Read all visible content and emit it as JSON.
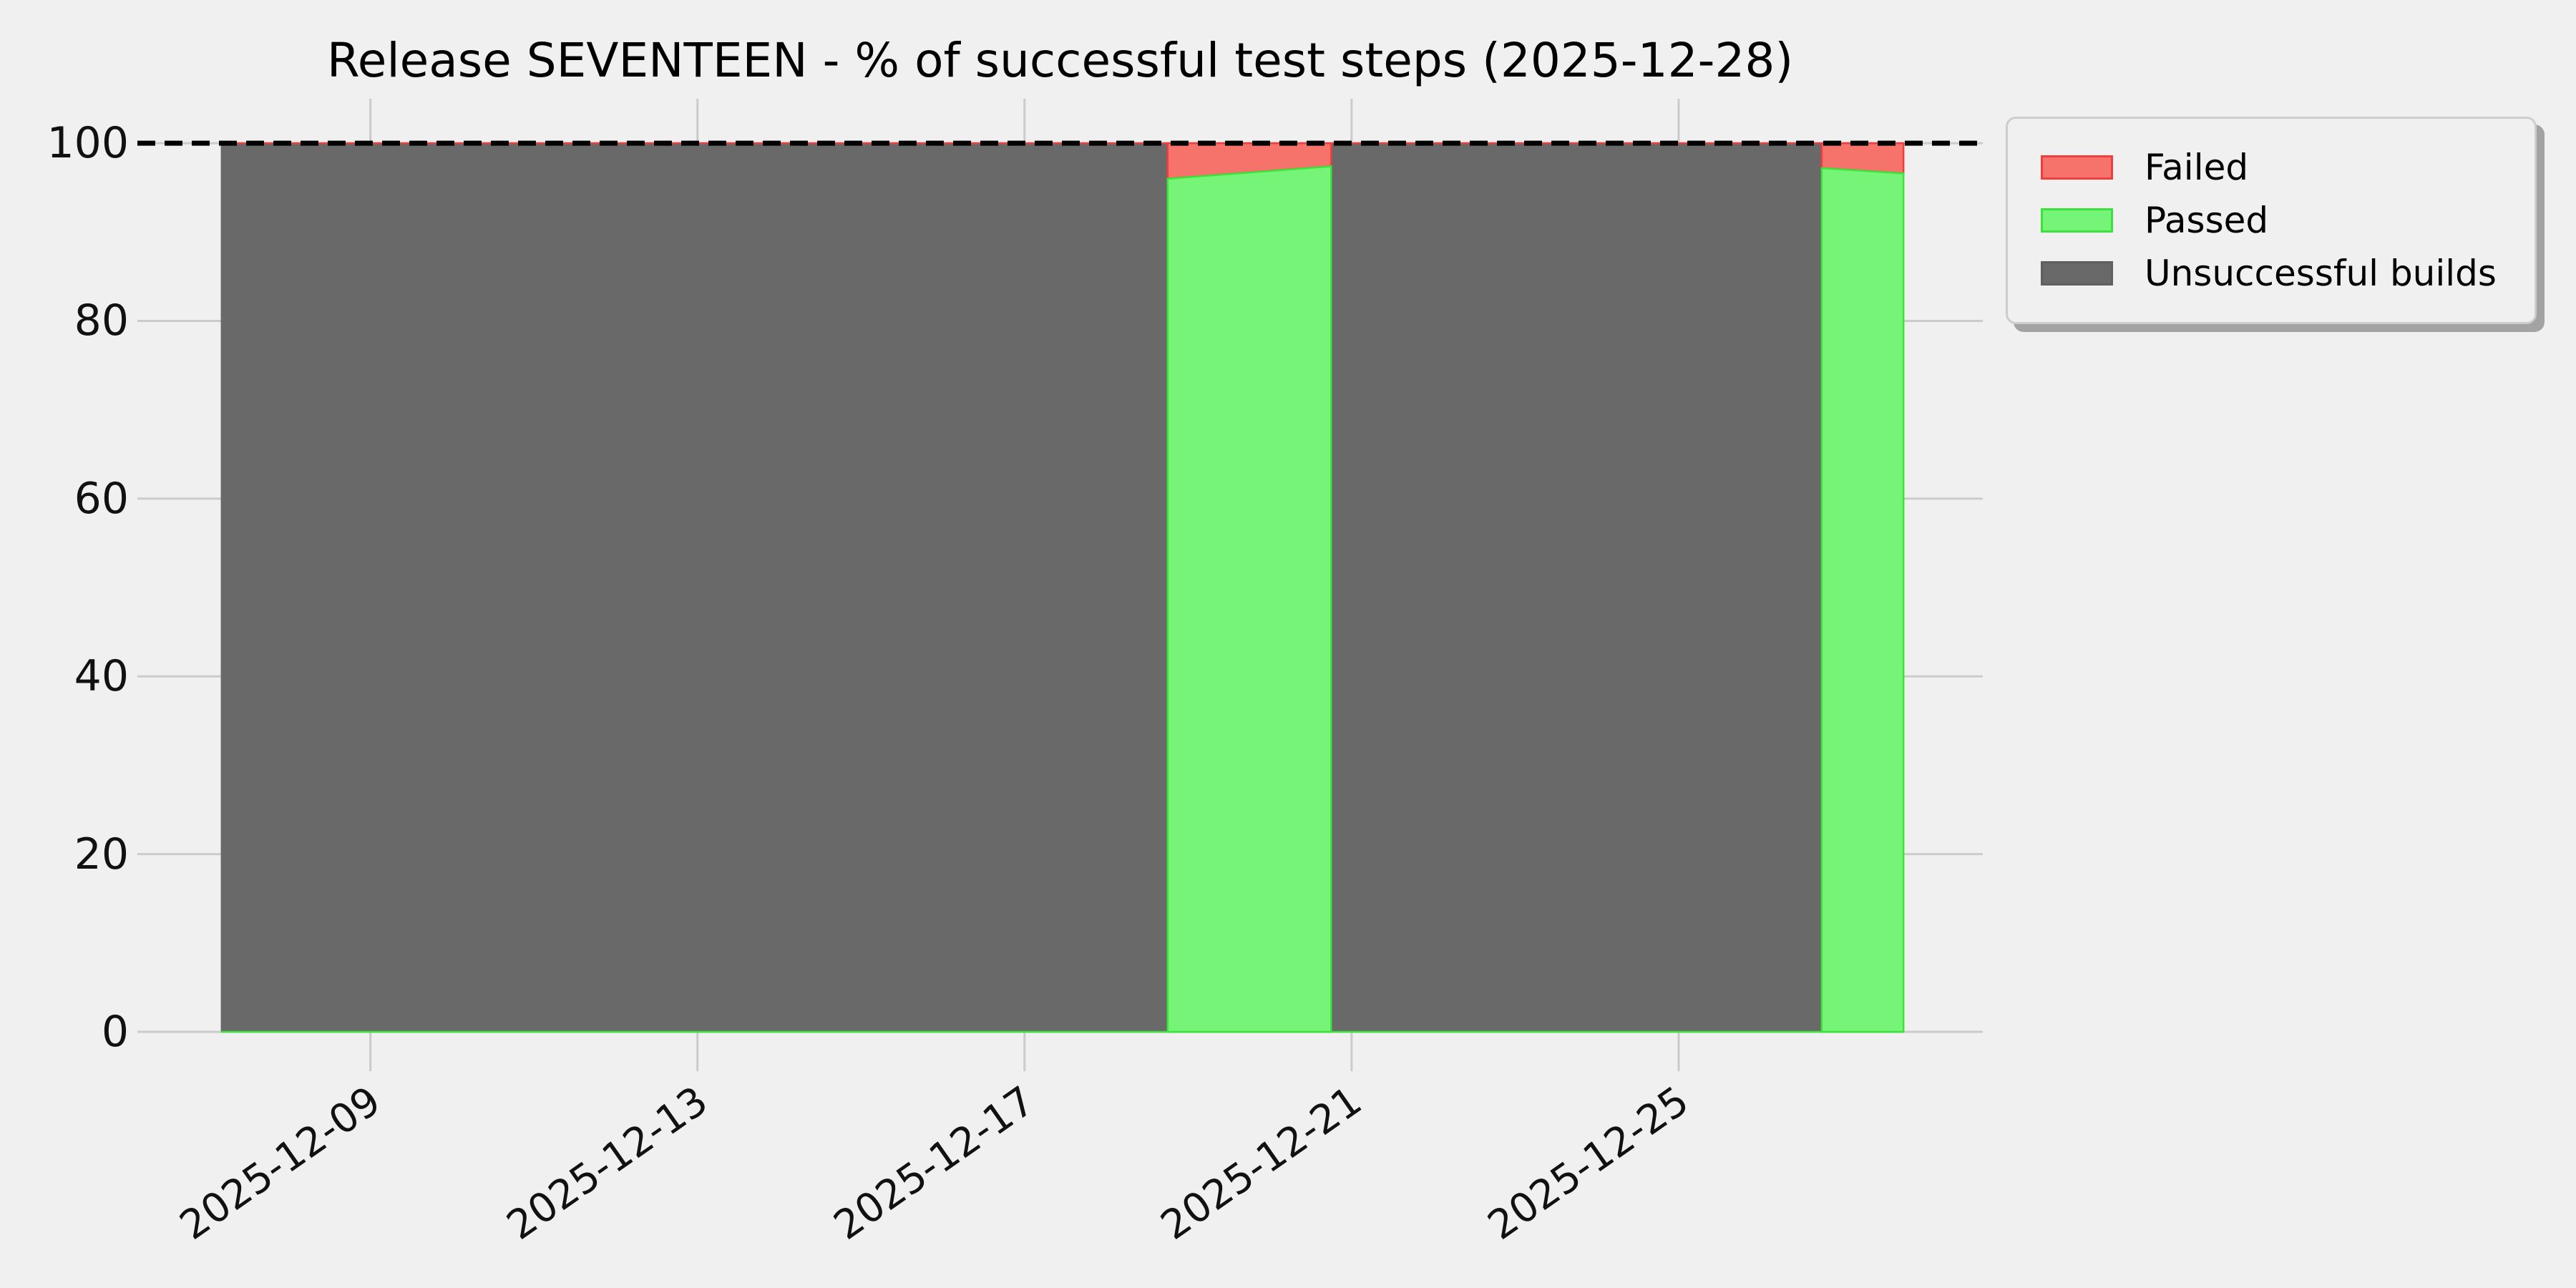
{
  "chart_data": {
    "type": "area",
    "stacked": true,
    "title": "Release SEVENTEEN - % of successful test steps (2025-12-28)",
    "background_color": "#f0f0f0",
    "grid_color": "#cbcbcb",
    "grid": {
      "horizontal": true,
      "vertical": true
    },
    "ylim": [
      0,
      105
    ],
    "yticks": [
      0,
      20,
      40,
      60,
      80,
      100
    ],
    "x_origin_date": "2025-12-07",
    "xlim_days": [
      -0.85,
      21.72
    ],
    "xticks": [
      {
        "day": 2,
        "label": "2025-12-09"
      },
      {
        "day": 6,
        "label": "2025-12-13"
      },
      {
        "day": 10,
        "label": "2025-12-17"
      },
      {
        "day": 14,
        "label": "2025-12-21"
      },
      {
        "day": 18,
        "label": "2025-12-25"
      }
    ],
    "target_line": {
      "value": 100,
      "style": "dashed",
      "color": "#000000",
      "width": 7
    },
    "series": [
      {
        "name": "Failed",
        "fill": "#f6736c",
        "edge": "#f23d3d"
      },
      {
        "name": "Passed",
        "fill": "#76f478",
        "edge": "#3ae23a"
      },
      {
        "name": "Unsuccessful builds",
        "fill": "#696969",
        "edge": "#5f5f5f"
      }
    ],
    "points": [
      {
        "day": 0.17,
        "approx_time": "2025-12-07 04:00",
        "passed": 0,
        "failed": 0,
        "unsuccessful": 100
      },
      {
        "day": 11.75,
        "approx_time": "2025-12-18 18:00",
        "passed": 0,
        "failed": 0,
        "unsuccessful": 100
      },
      {
        "day": 11.75,
        "approx_time": "2025-12-18 18:00",
        "passed": 96.0,
        "failed": 4.0,
        "unsuccessful": 0
      },
      {
        "day": 13.75,
        "approx_time": "2025-12-20 18:00",
        "passed": 97.4,
        "failed": 2.6,
        "unsuccessful": 0
      },
      {
        "day": 13.75,
        "approx_time": "2025-12-20 18:00",
        "passed": 0,
        "failed": 0,
        "unsuccessful": 100
      },
      {
        "day": 19.75,
        "approx_time": "2025-12-26 18:00",
        "passed": 0,
        "failed": 0,
        "unsuccessful": 100
      },
      {
        "day": 19.75,
        "approx_time": "2025-12-26 18:00",
        "passed": 97.2,
        "failed": 2.8,
        "unsuccessful": 0
      },
      {
        "day": 20.75,
        "approx_time": "2025-12-27 18:00",
        "passed": 96.6,
        "failed": 3.4,
        "unsuccessful": 0
      }
    ],
    "legend": {
      "position": "upper right",
      "entries": [
        "Failed",
        "Passed",
        "Unsuccessful builds"
      ]
    }
  }
}
